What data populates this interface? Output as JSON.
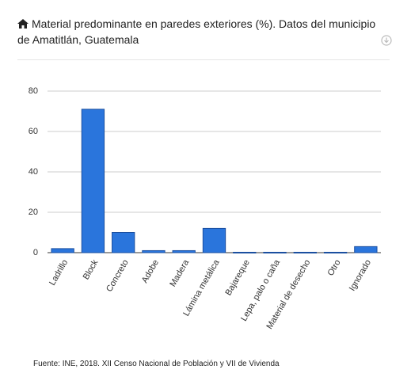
{
  "chart_data": {
    "type": "bar",
    "title": "Material predominante en paredes exteriores (%). Datos del municipio de Amatitlán, Guatemala",
    "categories": [
      "Ladrillo",
      "Block",
      "Concreto",
      "Adobe",
      "Madera",
      "Lámina metálica",
      "Bajareque",
      "Lepa, palo o caña",
      "Material de desecho",
      "Otro",
      "Ignorado"
    ],
    "values": [
      2,
      71,
      10,
      1,
      1,
      12,
      0.2,
      0.2,
      0.2,
      0.2,
      3
    ],
    "color": "#2a75dc",
    "ylim": [
      0,
      80
    ],
    "yticks": [
      0,
      20,
      40,
      60,
      80
    ],
    "grid": true,
    "source": "Fuente: INE, 2018. XII Censo Nacional de Población y VII de Vivienda"
  }
}
